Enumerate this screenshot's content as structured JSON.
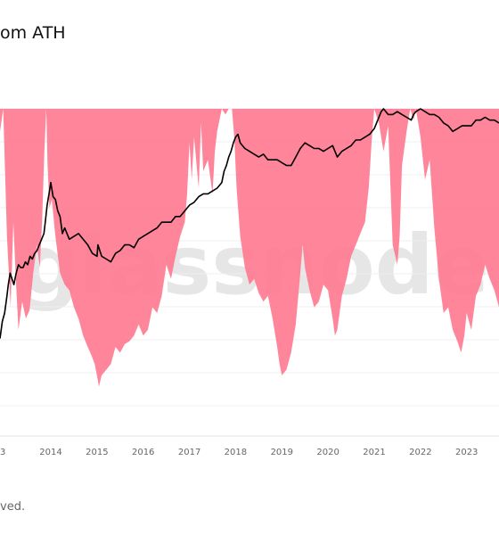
{
  "title": "om ATH",
  "footer_text": "ved.",
  "watermark": "glassnode",
  "chart_data": {
    "type": "area",
    "title": "om ATH",
    "x_tick_labels": [
      "3",
      "2014",
      "2015",
      "2016",
      "2017",
      "2018",
      "2019",
      "2020",
      "2021",
      "2022",
      "2023"
    ],
    "xlim": [
      2012.9,
      2023.7
    ],
    "series": [
      {
        "kind": "area",
        "color": "#ff7b92",
        "note_scale": "drawdown from ATH, 0 = top of area, 100 = deepest",
        "x": [
          2012.9,
          2012.97,
          2013.05,
          2013.13,
          2013.19,
          2013.25,
          2013.3,
          2013.38,
          2013.46,
          2013.54,
          2013.62,
          2013.7,
          2013.76,
          2013.81,
          2013.86,
          2013.9,
          2013.93,
          2013.97,
          2014.02,
          2014.1,
          2014.2,
          2014.3,
          2014.4,
          2014.5,
          2014.6,
          2014.7,
          2014.8,
          2014.88,
          2014.95,
          2015.01,
          2015.04,
          2015.1,
          2015.2,
          2015.3,
          2015.4,
          2015.5,
          2015.6,
          2015.7,
          2015.8,
          2015.9,
          2016.0,
          2016.1,
          2016.2,
          2016.3,
          2016.4,
          2016.5,
          2016.6,
          2016.7,
          2016.8,
          2016.9,
          2016.95,
          2017.0,
          2017.05,
          2017.1,
          2017.2,
          2017.25,
          2017.3,
          2017.4,
          2017.5,
          2017.55,
          2017.6,
          2017.7,
          2017.78,
          2017.85,
          2017.92,
          2017.97,
          2018.02,
          2018.1,
          2018.2,
          2018.3,
          2018.4,
          2018.5,
          2018.6,
          2018.7,
          2018.8,
          2018.9,
          2018.95,
          2019.0,
          2019.1,
          2019.2,
          2019.3,
          2019.4,
          2019.45,
          2019.5,
          2019.6,
          2019.7,
          2019.8,
          2019.9,
          2020.0,
          2020.1,
          2020.15,
          2020.2,
          2020.3,
          2020.4,
          2020.5,
          2020.6,
          2020.7,
          2020.8,
          2020.88,
          2020.95,
          2021.0,
          2021.1,
          2021.2,
          2021.3,
          2021.4,
          2021.5,
          2021.55,
          2021.6,
          2021.7,
          2021.78,
          2021.85,
          2021.9,
          2022.0,
          2022.1,
          2022.2,
          2022.3,
          2022.4,
          2022.5,
          2022.6,
          2022.7,
          2022.8,
          2022.88,
          2022.95,
          2023.0,
          2023.1,
          2023.2,
          2023.3,
          2023.4,
          2023.5,
          2023.6,
          2023.7
        ],
        "drawdown": [
          8,
          0,
          45,
          70,
          40,
          62,
          78,
          68,
          74,
          71,
          58,
          48,
          56,
          40,
          15,
          0,
          20,
          35,
          32,
          45,
          58,
          62,
          64,
          70,
          74,
          80,
          84,
          87,
          90,
          95,
          98,
          94,
          92,
          90,
          84,
          86,
          83,
          82,
          80,
          76,
          80,
          78,
          70,
          72,
          66,
          55,
          60,
          52,
          45,
          40,
          30,
          12,
          25,
          10,
          28,
          5,
          22,
          18,
          30,
          15,
          8,
          0,
          2,
          0,
          0,
          10,
          28,
          45,
          56,
          62,
          60,
          65,
          68,
          66,
          74,
          84,
          90,
          94,
          92,
          86,
          76,
          58,
          48,
          56,
          64,
          70,
          68,
          62,
          64,
          74,
          80,
          78,
          66,
          60,
          52,
          48,
          44,
          40,
          28,
          10,
          0,
          5,
          15,
          6,
          48,
          55,
          45,
          20,
          8,
          0,
          4,
          0,
          10,
          25,
          18,
          42,
          60,
          72,
          70,
          78,
          82,
          86,
          80,
          72,
          78,
          66,
          62,
          55,
          60,
          64,
          70
        ]
      },
      {
        "kind": "line",
        "color": "#000000",
        "note_scale": "relative price level, 0 = top of area, 100 = bottom of area",
        "x": [
          2012.9,
          2012.95,
          2013.0,
          2013.05,
          2013.08,
          2013.12,
          2013.16,
          2013.2,
          2013.25,
          2013.3,
          2013.35,
          2013.4,
          2013.45,
          2013.5,
          2013.55,
          2013.6,
          2013.65,
          2013.7,
          2013.75,
          2013.8,
          2013.85,
          2013.88,
          2013.92,
          2013.96,
          2014.0,
          2014.05,
          2014.1,
          2014.15,
          2014.2,
          2014.25,
          2014.3,
          2014.35,
          2014.4,
          2014.5,
          2014.6,
          2014.7,
          2014.8,
          2014.9,
          2015.0,
          2015.02,
          2015.1,
          2015.2,
          2015.3,
          2015.4,
          2015.5,
          2015.6,
          2015.7,
          2015.8,
          2015.9,
          2016.0,
          2016.1,
          2016.2,
          2016.3,
          2016.4,
          2016.5,
          2016.6,
          2016.7,
          2016.8,
          2016.9,
          2017.0,
          2017.1,
          2017.2,
          2017.3,
          2017.4,
          2017.5,
          2017.6,
          2017.7,
          2017.75,
          2017.8,
          2017.85,
          2017.9,
          2017.95,
          2018.0,
          2018.05,
          2018.1,
          2018.2,
          2018.3,
          2018.4,
          2018.5,
          2018.6,
          2018.7,
          2018.8,
          2018.9,
          2019.0,
          2019.1,
          2019.2,
          2019.3,
          2019.4,
          2019.5,
          2019.6,
          2019.7,
          2019.8,
          2019.9,
          2020.0,
          2020.1,
          2020.15,
          2020.2,
          2020.3,
          2020.4,
          2020.5,
          2020.6,
          2020.7,
          2020.8,
          2020.9,
          2021.0,
          2021.05,
          2021.1,
          2021.15,
          2021.2,
          2021.3,
          2021.4,
          2021.5,
          2021.6,
          2021.7,
          2021.8,
          2021.85,
          2021.9,
          2022.0,
          2022.1,
          2022.2,
          2022.3,
          2022.4,
          2022.5,
          2022.6,
          2022.7,
          2022.8,
          2022.9,
          2023.0,
          2023.1,
          2023.2,
          2023.3,
          2023.4,
          2023.5,
          2023.6,
          2023.7
        ],
        "level": [
          81,
          75,
          72,
          66,
          62,
          58,
          60,
          62,
          58,
          55,
          56,
          56,
          54,
          55,
          52,
          53,
          51,
          50,
          48,
          46,
          44,
          40,
          34,
          30,
          26,
          31,
          32,
          36,
          38,
          44,
          42,
          44,
          46,
          45,
          44,
          46,
          48,
          51,
          52,
          48,
          52,
          53,
          54,
          51,
          50,
          48,
          48,
          49,
          46,
          45,
          44,
          43,
          42,
          40,
          40,
          40,
          38,
          38,
          36,
          34,
          33,
          31,
          30,
          30,
          29,
          28,
          26,
          22,
          20,
          17,
          15,
          12,
          10,
          9,
          12,
          14,
          15,
          16,
          17,
          16,
          18,
          18,
          18,
          19,
          20,
          20,
          17,
          14,
          12,
          13,
          14,
          14,
          15,
          14,
          13,
          15,
          17,
          15,
          14,
          13,
          11,
          11,
          10,
          9,
          7,
          5,
          3,
          1,
          0,
          2,
          2,
          1,
          2,
          3,
          4,
          2,
          1,
          0,
          1,
          2,
          2,
          3,
          5,
          6,
          8,
          7,
          6,
          6,
          6,
          4,
          4,
          3,
          4,
          4,
          5
        ]
      }
    ]
  }
}
